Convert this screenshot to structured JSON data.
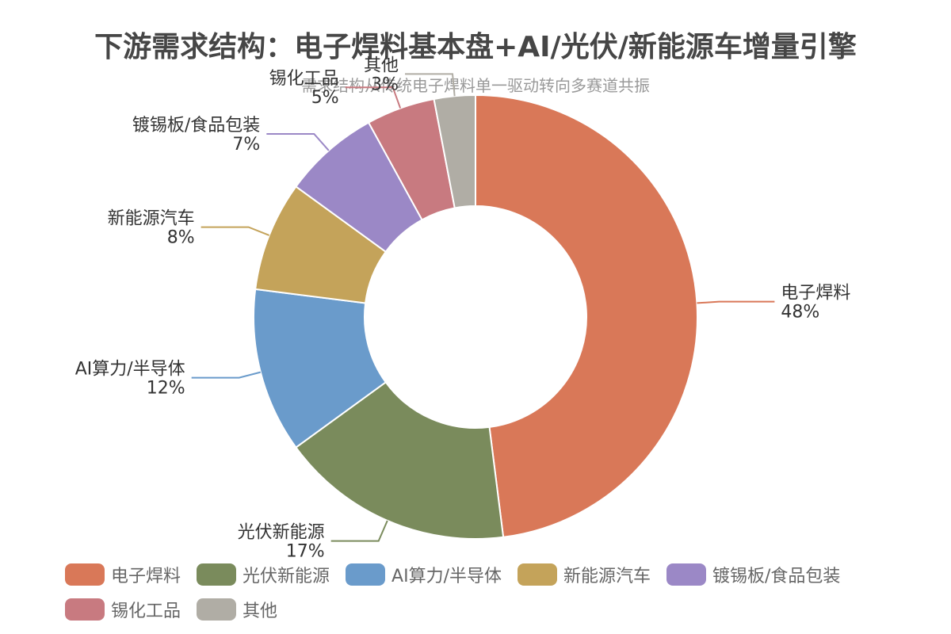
{
  "chart_data": {
    "type": "pie",
    "title": "下游需求结构：电子焊料基本盘+AI/光伏/新能源车增量引擎",
    "subtitle": "需求结构从传统电子焊料单一驱动转向多赛道共振",
    "categories": [
      "电子焊料",
      "光伏新能源",
      "AI算力/半导体",
      "新能源汽车",
      "镀锡板/食品包装",
      "锡化工品",
      "其他"
    ],
    "values": [
      48,
      17,
      12,
      8,
      7,
      5,
      3
    ],
    "value_labels": [
      "48%",
      "17%",
      "12%",
      "8%",
      "7%",
      "5%",
      "3%"
    ],
    "colors": [
      "#D97858",
      "#7A8B5C",
      "#6A9BCB",
      "#C4A35A",
      "#9B88C6",
      "#C87A80",
      "#B0ADA5"
    ],
    "legend_position": "bottom",
    "donut": true
  }
}
